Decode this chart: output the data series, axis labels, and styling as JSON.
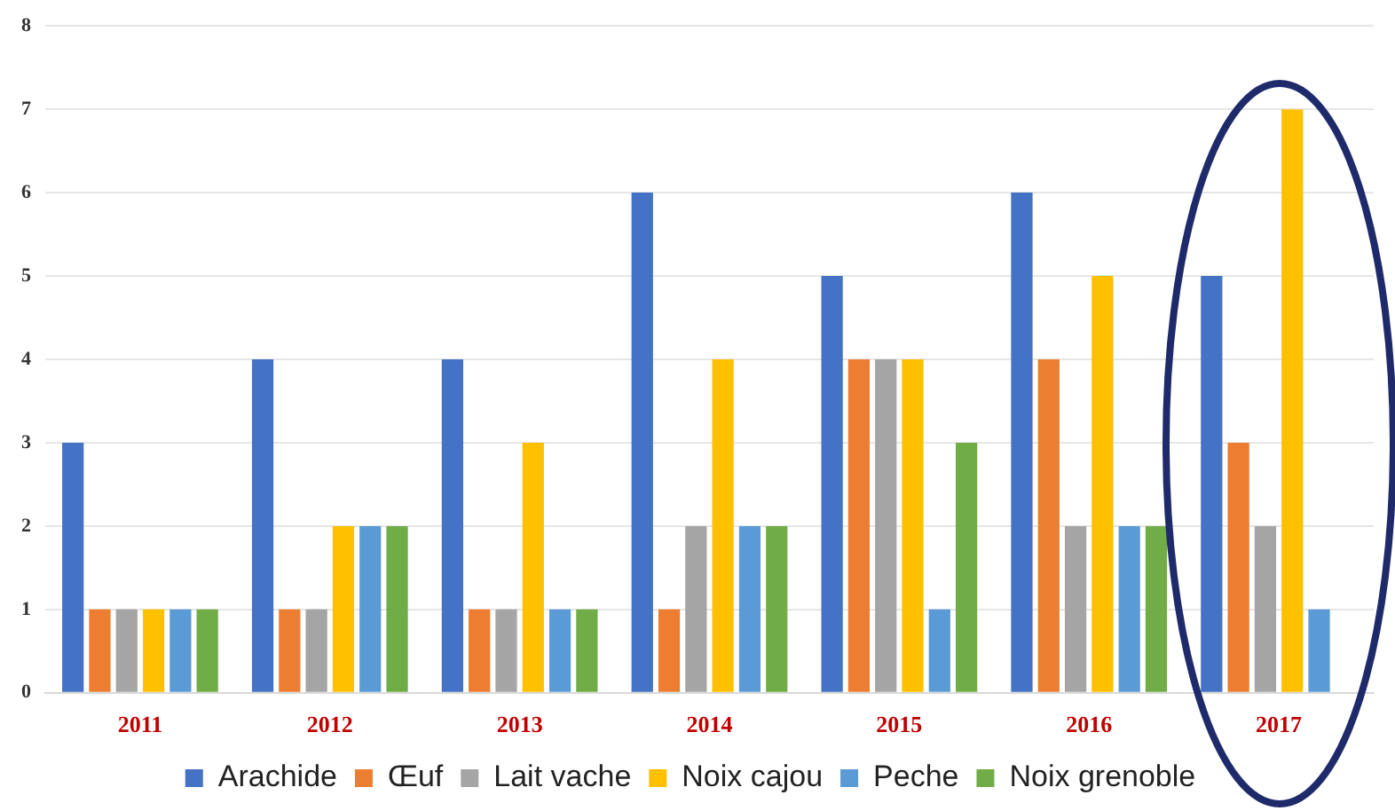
{
  "chart_data": {
    "type": "bar",
    "categories": [
      "2011",
      "2012",
      "2013",
      "2014",
      "2015",
      "2016",
      "2017"
    ],
    "series": [
      {
        "name": "Arachide",
        "color": "#4472c4",
        "values": [
          3,
          4,
          4,
          6,
          5,
          6,
          5
        ]
      },
      {
        "name": "Œuf",
        "color": "#ed7d31",
        "values": [
          1,
          1,
          1,
          1,
          4,
          4,
          3
        ]
      },
      {
        "name": "Lait vache",
        "color": "#a5a5a5",
        "values": [
          1,
          1,
          1,
          2,
          4,
          2,
          2
        ]
      },
      {
        "name": "Noix cajou",
        "color": "#ffc000",
        "values": [
          1,
          2,
          3,
          4,
          4,
          5,
          7
        ]
      },
      {
        "name": "Peche",
        "color": "#5b9bd5",
        "values": [
          1,
          2,
          1,
          2,
          1,
          2,
          1
        ]
      },
      {
        "name": "Noix grenoble",
        "color": "#70ad47",
        "values": [
          1,
          2,
          1,
          2,
          3,
          2,
          null
        ]
      }
    ],
    "ylim": [
      0,
      8
    ],
    "yticks": [
      0,
      1,
      2,
      3,
      4,
      5,
      6,
      7,
      8
    ],
    "grid": "y",
    "legend": "bottom"
  }
}
